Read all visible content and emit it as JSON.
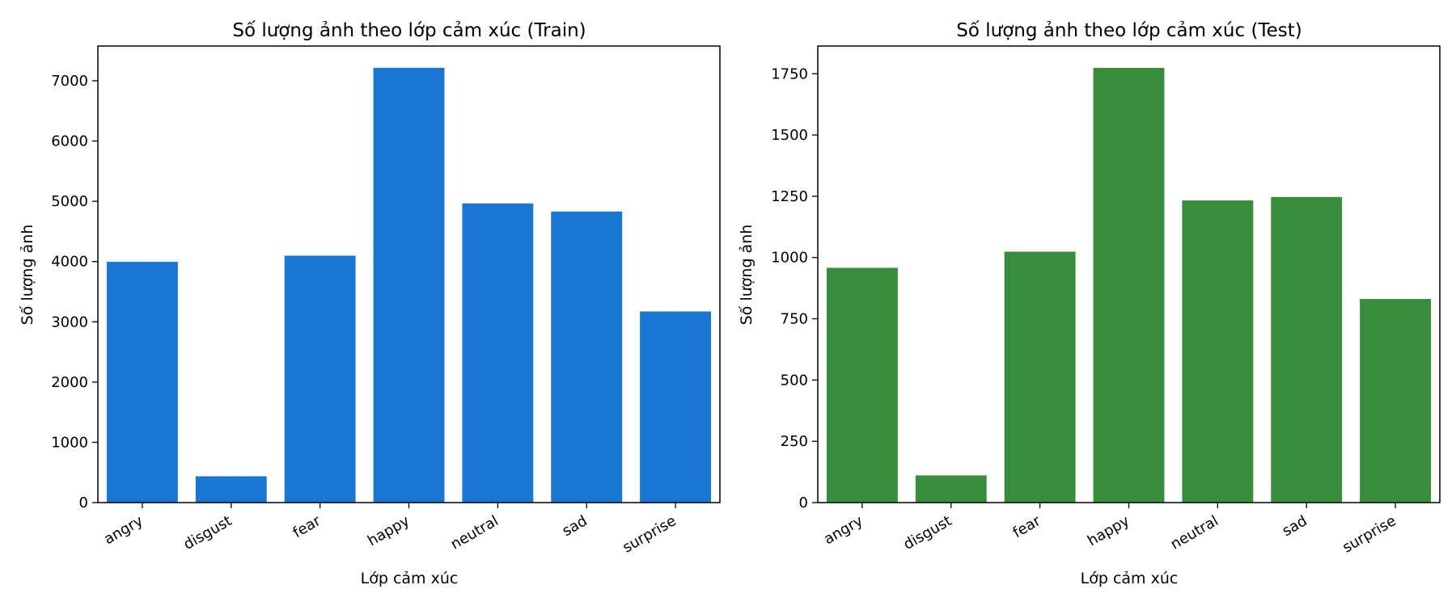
{
  "chart_data": [
    {
      "type": "bar",
      "title": "Số lượng ảnh theo lớp cảm xúc (Train)",
      "xlabel": "Lớp cảm xúc",
      "ylabel": "Số lượng ảnh",
      "categories": [
        "angry",
        "disgust",
        "fear",
        "happy",
        "neutral",
        "sad",
        "surprise"
      ],
      "values": [
        3995,
        436,
        4097,
        7215,
        4965,
        4830,
        3171
      ],
      "ylim": [
        0,
        7576
      ],
      "yticks": [
        0,
        1000,
        2000,
        3000,
        4000,
        5000,
        6000,
        7000
      ],
      "color": "#1976d2",
      "grid": false
    },
    {
      "type": "bar",
      "title": "Số lượng ảnh theo lớp cảm xúc (Test)",
      "xlabel": "Lớp cảm xúc",
      "ylabel": "Số lượng ảnh",
      "categories": [
        "angry",
        "disgust",
        "fear",
        "happy",
        "neutral",
        "sad",
        "surprise"
      ],
      "values": [
        958,
        111,
        1024,
        1774,
        1233,
        1247,
        831
      ],
      "ylim": [
        0,
        1863
      ],
      "yticks": [
        0,
        250,
        500,
        750,
        1000,
        1250,
        1500,
        1750
      ],
      "color": "#388e3c",
      "grid": false
    }
  ]
}
